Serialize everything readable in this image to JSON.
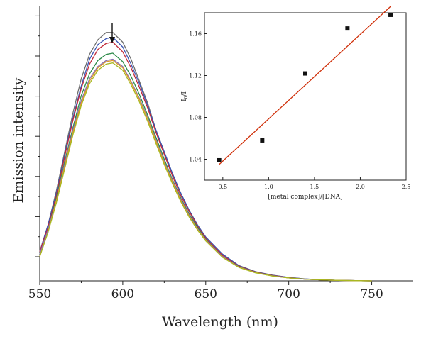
{
  "chart_data": [
    {
      "type": "line",
      "xlabel": "Wavelength (nm)",
      "ylabel": "Emission intensity",
      "xlim": [
        550,
        775
      ],
      "ylim": [
        0,
        1.13
      ],
      "x_ticks": [
        550,
        600,
        650,
        700,
        750
      ],
      "y_tick_labels_shown": false,
      "grid": false,
      "legend": "none",
      "annotation": "downward arrow above peak at ~594 nm",
      "x": [
        550,
        555,
        560,
        565,
        570,
        575,
        580,
        585,
        590,
        594,
        600,
        605,
        610,
        615,
        620,
        625,
        630,
        635,
        640,
        645,
        650,
        660,
        670,
        680,
        690,
        700,
        710,
        720,
        730,
        740,
        750
      ],
      "series": [
        {
          "color": "#6e6e6e",
          "values": [
            0.12,
            0.23,
            0.37,
            0.53,
            0.69,
            0.83,
            0.93,
            0.99,
            1.02,
            1.02,
            0.98,
            0.91,
            0.82,
            0.73,
            0.62,
            0.53,
            0.44,
            0.36,
            0.29,
            0.23,
            0.18,
            0.11,
            0.063,
            0.038,
            0.024,
            0.014,
            0.008,
            0.004,
            0.002,
            0.001,
            0.0
          ]
        },
        {
          "color": "#3a55b4",
          "values": [
            0.12,
            0.23,
            0.36,
            0.52,
            0.67,
            0.8,
            0.91,
            0.97,
            0.995,
            1.0,
            0.96,
            0.89,
            0.81,
            0.72,
            0.62,
            0.53,
            0.44,
            0.36,
            0.29,
            0.23,
            0.18,
            0.11,
            0.062,
            0.037,
            0.023,
            0.014,
            0.008,
            0.004,
            0.002,
            0.001,
            0.0
          ]
        },
        {
          "color": "#c22a3a",
          "values": [
            0.12,
            0.22,
            0.35,
            0.51,
            0.66,
            0.79,
            0.89,
            0.95,
            0.975,
            0.98,
            0.94,
            0.875,
            0.795,
            0.71,
            0.61,
            0.52,
            0.43,
            0.35,
            0.285,
            0.225,
            0.175,
            0.105,
            0.06,
            0.036,
            0.022,
            0.013,
            0.007,
            0.004,
            0.002,
            0.001,
            0.0
          ]
        },
        {
          "color": "#2e8b4a",
          "values": [
            0.11,
            0.21,
            0.34,
            0.49,
            0.63,
            0.76,
            0.85,
            0.905,
            0.93,
            0.935,
            0.9,
            0.84,
            0.765,
            0.68,
            0.59,
            0.5,
            0.415,
            0.34,
            0.275,
            0.22,
            0.17,
            0.1,
            0.058,
            0.035,
            0.021,
            0.012,
            0.007,
            0.004,
            0.002,
            0.001,
            0.0
          ]
        },
        {
          "color": "#8a6fb0",
          "values": [
            0.11,
            0.21,
            0.33,
            0.48,
            0.62,
            0.74,
            0.83,
            0.88,
            0.905,
            0.91,
            0.88,
            0.82,
            0.75,
            0.67,
            0.58,
            0.49,
            0.41,
            0.335,
            0.27,
            0.215,
            0.168,
            0.1,
            0.057,
            0.034,
            0.021,
            0.012,
            0.007,
            0.004,
            0.002,
            0.001,
            0.0
          ]
        },
        {
          "color": "#e09a2a",
          "values": [
            0.1,
            0.2,
            0.33,
            0.47,
            0.61,
            0.73,
            0.82,
            0.875,
            0.9,
            0.905,
            0.875,
            0.815,
            0.745,
            0.665,
            0.575,
            0.485,
            0.405,
            0.33,
            0.266,
            0.212,
            0.166,
            0.098,
            0.056,
            0.034,
            0.02,
            0.012,
            0.007,
            0.004,
            0.002,
            0.001,
            0.0
          ]
        },
        {
          "color": "#a8b820",
          "values": [
            0.1,
            0.2,
            0.32,
            0.46,
            0.6,
            0.72,
            0.81,
            0.865,
            0.89,
            0.895,
            0.865,
            0.805,
            0.735,
            0.655,
            0.565,
            0.478,
            0.398,
            0.325,
            0.262,
            0.209,
            0.164,
            0.097,
            0.055,
            0.033,
            0.02,
            0.012,
            0.007,
            0.004,
            0.002,
            0.001,
            0.0
          ]
        }
      ]
    },
    {
      "type": "scatter",
      "xlabel": "[metal complex]/[DNA]",
      "ylabel": "I0/I",
      "xlim": [
        0.3,
        2.5
      ],
      "ylim": [
        1.02,
        1.18
      ],
      "x_ticks": [
        "0.5",
        "1.0",
        "1.5",
        "2.0",
        "2.5"
      ],
      "y_ticks": [
        "1.04",
        "1.08",
        "1.12",
        "1.16"
      ],
      "grid": false,
      "legend": "none",
      "series": [
        {
          "marker": "square",
          "color": "#111111",
          "x": [
            0.46,
            0.93,
            1.4,
            1.86,
            2.33
          ],
          "y": [
            1.039,
            1.058,
            1.122,
            1.165,
            1.178
          ]
        }
      ],
      "fit_line": {
        "color": "#d0300a",
        "x": [
          0.46,
          2.33
        ],
        "y": [
          1.035,
          1.186
        ]
      }
    }
  ]
}
